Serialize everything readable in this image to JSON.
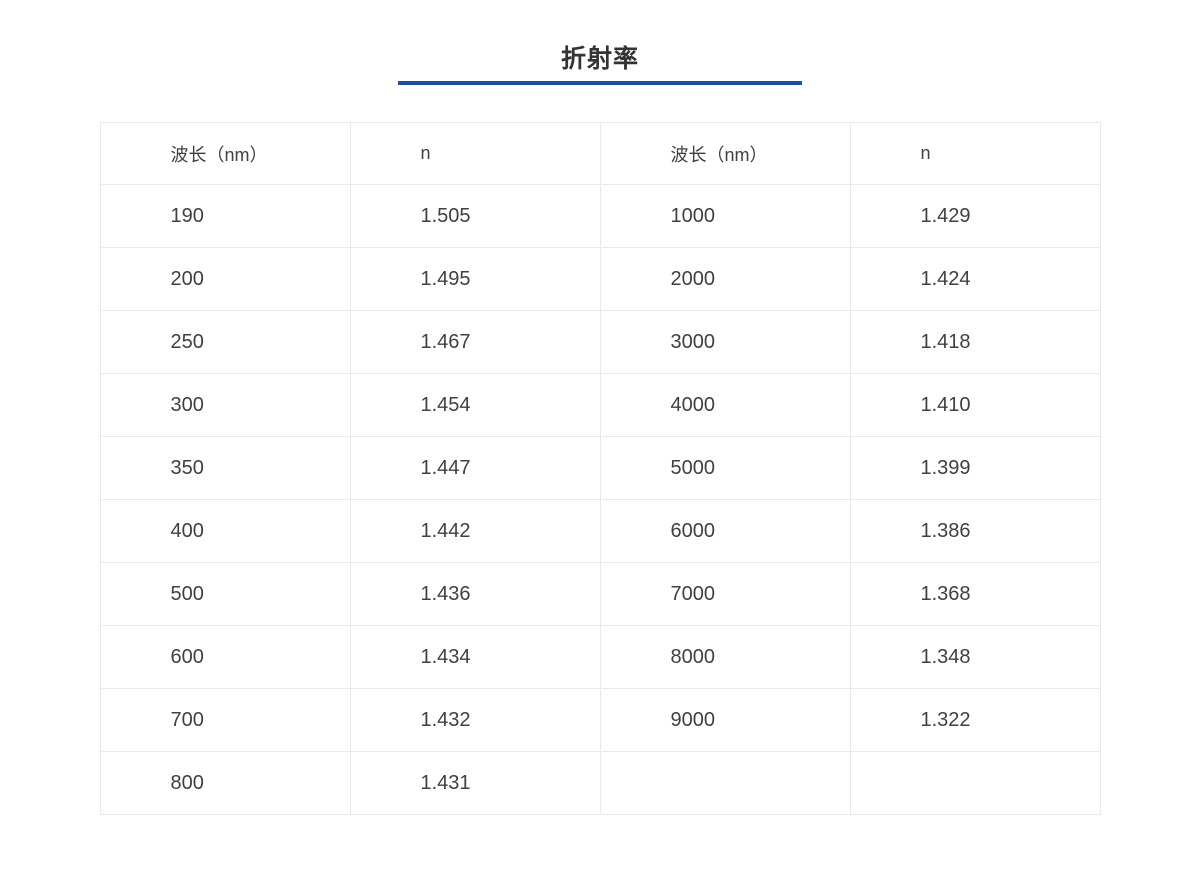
{
  "page": {
    "title": "折射率",
    "accent_color": "#1e4f9e",
    "background_color": "#ffffff",
    "text_color": "#404040",
    "border_color": "#e9e9e9"
  },
  "table": {
    "headers": [
      "波长（nm）",
      "n",
      "波长（nm）",
      "n"
    ],
    "rows": [
      [
        "190",
        "1.505",
        "1000",
        "1.429"
      ],
      [
        "200",
        "1.495",
        "2000",
        "1.424"
      ],
      [
        "250",
        "1.467",
        "3000",
        "1.418"
      ],
      [
        "300",
        "1.454",
        "4000",
        "1.410"
      ],
      [
        "350",
        "1.447",
        "5000",
        "1.399"
      ],
      [
        "400",
        "1.442",
        "6000",
        "1.386"
      ],
      [
        "500",
        "1.436",
        "7000",
        "1.368"
      ],
      [
        "600",
        "1.434",
        "8000",
        "1.348"
      ],
      [
        "700",
        "1.432",
        "9000",
        "1.322"
      ],
      [
        "800",
        "1.431",
        "",
        ""
      ]
    ]
  }
}
